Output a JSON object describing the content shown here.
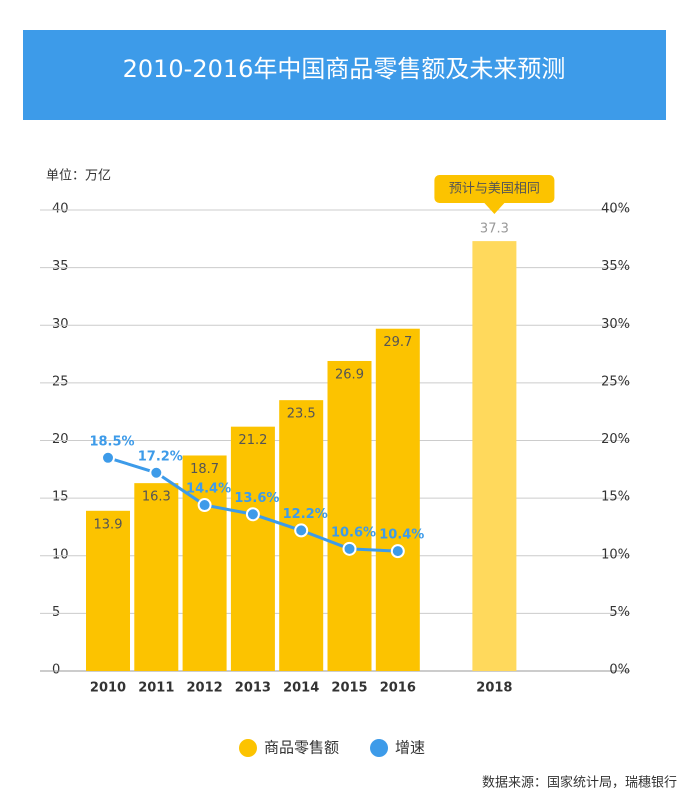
{
  "chart_data": {
    "type": "bar",
    "title": "2010-2016年中国商品零售额及未来预测",
    "unit_label": "单位：万亿",
    "annotation": "预计与美国相同",
    "source": "数据来源：国家统计局，瑞穗银行",
    "categories": [
      "2010",
      "2011",
      "2012",
      "2013",
      "2014",
      "2015",
      "2016",
      "2018"
    ],
    "series": [
      {
        "name": "商品零售额",
        "type": "bar",
        "color": "#fcc300",
        "colors": [
          "#fcc300",
          "#fcc300",
          "#fcc300",
          "#fcc300",
          "#fcc300",
          "#fcc300",
          "#fcc300",
          "#ffd95c"
        ],
        "values": [
          13.9,
          16.3,
          18.7,
          21.2,
          23.5,
          26.9,
          29.7,
          37.3
        ]
      },
      {
        "name": "增速",
        "type": "line",
        "axis": "y2",
        "color": "#3d9be9",
        "values": [
          18.5,
          17.2,
          14.4,
          13.6,
          12.2,
          10.6,
          10.4,
          null
        ],
        "value_labels": [
          "18.5%",
          "17.2%",
          "14.4%",
          "13.6%",
          "12.2%",
          "10.6%",
          "10.4%",
          null
        ]
      }
    ],
    "ylim": [
      0,
      40
    ],
    "yticks": [
      0,
      5,
      10,
      15,
      20,
      25,
      30,
      35,
      40
    ],
    "y2lim": [
      0,
      40
    ],
    "y2ticks": [
      {
        "value": 0,
        "label": "0%"
      },
      {
        "value": 5,
        "label": "5%"
      },
      {
        "value": 10,
        "label": "10%"
      },
      {
        "value": 15,
        "label": "15%"
      },
      {
        "value": 20,
        "label": "20%"
      },
      {
        "value": 25,
        "label": "25%"
      },
      {
        "value": 30,
        "label": "30%"
      },
      {
        "value": 35,
        "label": "35%"
      },
      {
        "value": 40,
        "label": "40%"
      }
    ],
    "grid": true
  }
}
